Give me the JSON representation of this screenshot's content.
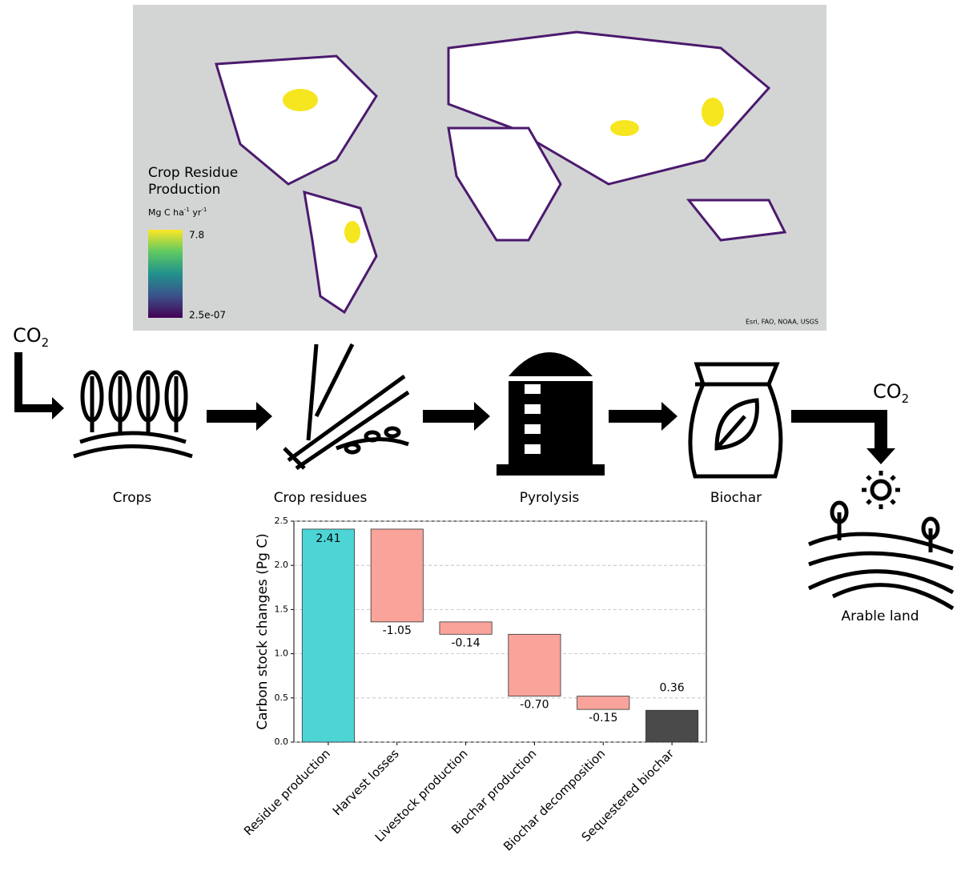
{
  "map": {
    "legend_title": [
      "Crop Residue",
      "Production"
    ],
    "legend_unit": [
      "Mg C ha",
      "-1",
      " yr",
      "-1"
    ],
    "legend_max": "7.8",
    "legend_min": "2.5e-07",
    "attribution": "Esri, FAO, NOAA, USGS"
  },
  "flow": {
    "co2_in": [
      "CO",
      "2"
    ],
    "co2_out": [
      "CO",
      "2"
    ],
    "nodes": [
      "Crops",
      "Crop residues",
      "Pyrolysis",
      "Biochar",
      "Arable land"
    ]
  },
  "chart_data": {
    "type": "waterfall",
    "ylabel": "Carbon stock changes (Pg C)",
    "categories": [
      "Residue production",
      "Harvest losses",
      "Livestock production",
      "Biochar production",
      "Biochar decomposition",
      "Sequestered biochar"
    ],
    "values": [
      2.41,
      -1.05,
      -0.14,
      -0.7,
      -0.15,
      0.36
    ],
    "value_labels": [
      "2.41",
      "-1.05",
      "-0.14",
      "-0.70",
      "-0.15",
      "0.36"
    ],
    "measure": [
      "absolute",
      "relative",
      "relative",
      "relative",
      "relative",
      "absolute"
    ],
    "colors": [
      "#4dd5d6",
      "#f9a39a",
      "#f9a39a",
      "#f9a39a",
      "#f9a39a",
      "#4a4a4a"
    ],
    "ylim": [
      0,
      2.5
    ],
    "yticks": [
      {
        "value": 0,
        "label": "0.0"
      },
      0.5,
      {
        "value": 1,
        "label": "1.0"
      },
      1.5,
      {
        "value": 2,
        "label": "2.0"
      },
      2.5
    ],
    "grid": true
  }
}
